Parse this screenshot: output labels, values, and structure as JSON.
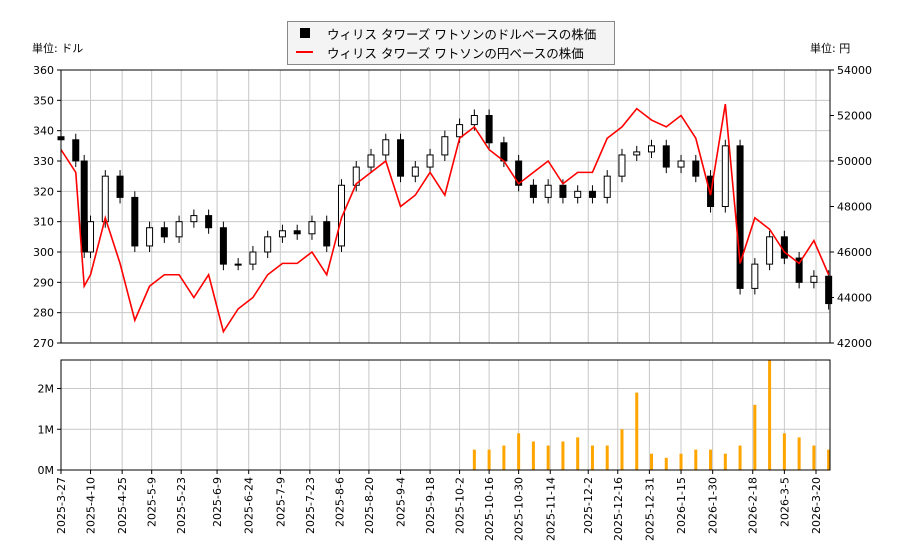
{
  "units": {
    "left": "単位: ドル",
    "right": "単位: 円"
  },
  "legend": {
    "usd": "ウィリス タワーズ ワトソンのドルベースの株価",
    "jpy": "ウィリス タワーズ ワトソンの円ベースの株価"
  },
  "colors": {
    "usd": "#000000",
    "jpy": "#ff0000",
    "volume": "#ffa500",
    "grid": "#c8c8c8"
  },
  "chart_data": [
    {
      "type": "candlestick+line",
      "ylim_left": [
        270,
        360
      ],
      "ylim_right": [
        42000,
        54000
      ],
      "yticks_left": [
        270,
        280,
        290,
        300,
        310,
        320,
        330,
        340,
        350,
        360
      ],
      "yticks_right": [
        42000,
        44000,
        46000,
        48000,
        50000,
        52000,
        54000
      ],
      "grid": true,
      "legend": "top-center",
      "dates": [
        "2025-3-27",
        "2025-4-3",
        "2025-4-7",
        "2025-4-10",
        "2025-4-17",
        "2025-4-24",
        "2025-5-1",
        "2025-5-8",
        "2025-5-15",
        "2025-5-22",
        "2025-5-29",
        "2025-6-5",
        "2025-6-12",
        "2025-6-19",
        "2025-6-26",
        "2025-7-3",
        "2025-7-10",
        "2025-7-17",
        "2025-7-24",
        "2025-7-31",
        "2025-8-7",
        "2025-8-14",
        "2025-8-21",
        "2025-8-28",
        "2025-9-4",
        "2025-9-11",
        "2025-9-18",
        "2025-9-25",
        "2025-10-2",
        "2025-10-9",
        "2025-10-16",
        "2025-10-23",
        "2025-10-30",
        "2025-11-6",
        "2025-11-13",
        "2025-11-20",
        "2025-11-27",
        "2025-12-4",
        "2025-12-11",
        "2025-12-18",
        "2025-12-25",
        "2026-1-1",
        "2026-1-8",
        "2026-1-15",
        "2026-1-22",
        "2026-1-29",
        "2026-2-5",
        "2026-2-12",
        "2026-2-19",
        "2026-2-26",
        "2026-3-5",
        "2026-3-12",
        "2026-3-19",
        "2026-3-26"
      ],
      "usd_close": [
        337,
        330,
        300,
        310,
        325,
        318,
        302,
        308,
        305,
        310,
        312,
        308,
        296,
        296,
        300,
        305,
        307,
        306,
        310,
        302,
        322,
        328,
        332,
        337,
        325,
        328,
        332,
        338,
        342,
        345,
        336,
        330,
        322,
        318,
        322,
        318,
        320,
        318,
        325,
        332,
        333,
        335,
        328,
        330,
        325,
        315,
        335,
        288,
        296,
        305,
        298,
        290,
        292,
        283
      ],
      "jpy_close": [
        50500,
        49500,
        44500,
        45000,
        47500,
        45500,
        43000,
        44500,
        45000,
        45000,
        44000,
        45000,
        42500,
        43500,
        44000,
        45000,
        45500,
        45500,
        46000,
        45000,
        47500,
        49000,
        49500,
        50000,
        48000,
        48500,
        49500,
        48500,
        51000,
        51500,
        50500,
        50000,
        49000,
        49500,
        50000,
        49000,
        49500,
        49500,
        51000,
        51500,
        52300,
        51800,
        51500,
        52000,
        51000,
        48500,
        52500,
        45500,
        47500,
        47000,
        46000,
        45500,
        46500,
        45000
      ]
    },
    {
      "type": "bar",
      "ylim": [
        0,
        2.7
      ],
      "yticks": [
        "0M",
        "1M",
        "2M"
      ],
      "volume_m": [
        null,
        null,
        null,
        null,
        null,
        null,
        null,
        null,
        null,
        null,
        null,
        null,
        null,
        null,
        null,
        null,
        null,
        null,
        null,
        null,
        null,
        null,
        null,
        null,
        null,
        null,
        null,
        null,
        null,
        0.5,
        0.5,
        0.6,
        0.9,
        0.7,
        0.6,
        0.7,
        0.8,
        0.6,
        0.6,
        1.0,
        1.9,
        0.4,
        0.3,
        0.4,
        0.5,
        0.5,
        0.4,
        0.6,
        1.6,
        2.7,
        0.9,
        0.8,
        0.6,
        0.5
      ],
      "xticks": [
        "2025-3-27",
        "2025-4-10",
        "2025-4-25",
        "2025-5-9",
        "2025-5-23",
        "2025-6-9",
        "2025-6-24",
        "2025-7-9",
        "2025-7-23",
        "2025-8-6",
        "2025-8-20",
        "2025-9-4",
        "2025-9-18",
        "2025-10-2",
        "2025-10-16",
        "2025-10-30",
        "2025-11-14",
        "2025-12-2",
        "2025-12-16",
        "2025-12-31",
        "2026-1-15",
        "2026-1-30",
        "2026-2-18",
        "2026-3-5",
        "2026-3-20"
      ]
    }
  ]
}
